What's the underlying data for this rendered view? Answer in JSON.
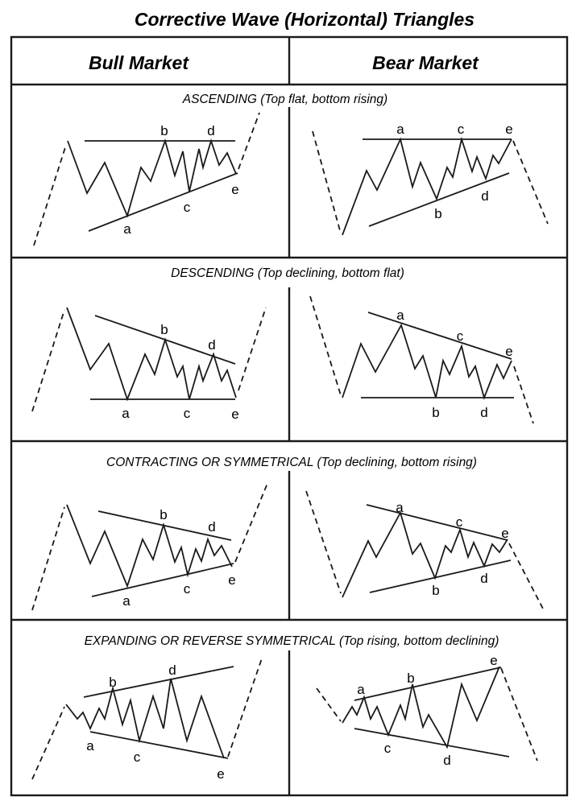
{
  "title": "Corrective Wave (Horizontal) Triangles",
  "columns": [
    "Bull Market",
    "Bear Market"
  ],
  "rows": [
    {
      "subtitle": "ASCENDING (Top flat, bottom rising)",
      "bull": {
        "labels": {
          "a": "a",
          "b": "b",
          "c": "c",
          "d": "d",
          "e": "e"
        },
        "wave": [
          [
            84,
            175
          ],
          [
            108,
            240
          ],
          [
            130,
            202
          ],
          [
            158,
            268
          ],
          [
            175,
            208
          ],
          [
            187,
            225
          ],
          [
            205,
            175
          ],
          [
            217,
            218
          ],
          [
            227,
            188
          ],
          [
            235,
            238
          ],
          [
            247,
            185
          ],
          [
            252,
            208
          ],
          [
            262,
            175
          ],
          [
            272,
            205
          ],
          [
            282,
            190
          ],
          [
            293,
            216
          ]
        ],
        "lines": [
          [
            [
              105,
              175
            ],
            [
              292,
              175
            ]
          ],
          [
            [
              110,
              287
            ],
            [
              295,
              215
            ]
          ]
        ],
        "dashes": [
          [
            [
              42,
              305
            ],
            [
              82,
              180
            ]
          ],
          [
            [
              296,
              210
            ],
            [
              322,
              140
            ]
          ]
        ],
        "label_pos": [
          [
            158,
            290
          ],
          [
            204,
            168
          ],
          [
            232,
            263
          ],
          [
            262,
            168
          ],
          [
            292,
            241
          ]
        ]
      },
      "bear": {
        "labels": {
          "a": "a",
          "b": "b",
          "c": "c",
          "d": "d",
          "e": "e"
        },
        "wave": [
          [
            425,
            292
          ],
          [
            455,
            212
          ],
          [
            468,
            236
          ],
          [
            497,
            173
          ],
          [
            512,
            232
          ],
          [
            522,
            202
          ],
          [
            542,
            247
          ],
          [
            555,
            208
          ],
          [
            562,
            220
          ],
          [
            573,
            173
          ],
          [
            586,
            213
          ],
          [
            592,
            195
          ],
          [
            603,
            222
          ],
          [
            612,
            193
          ],
          [
            619,
            203
          ],
          [
            635,
            173
          ]
        ],
        "lines": [
          [
            [
              450,
              173
            ],
            [
              635,
              173
            ]
          ],
          [
            [
              458,
              281
            ],
            [
              632,
              215
            ]
          ]
        ],
        "dashes": [
          [
            [
              388,
              163
            ],
            [
              423,
              290
            ]
          ],
          [
            [
              637,
              175
            ],
            [
              680,
              278
            ]
          ]
        ],
        "label_pos": [
          [
            497,
            166
          ],
          [
            544,
            271
          ],
          [
            572,
            166
          ],
          [
            602,
            249
          ],
          [
            632,
            166
          ]
        ]
      }
    },
    {
      "subtitle": "DESCENDING (Top declining, bottom flat)",
      "bull": {
        "labels": {
          "a": "a",
          "b": "b",
          "c": "c",
          "d": "d",
          "e": "e"
        },
        "wave": [
          [
            83,
            382
          ],
          [
            112,
            459
          ],
          [
            135,
            427
          ],
          [
            158,
            496
          ],
          [
            180,
            440
          ],
          [
            192,
            465
          ],
          [
            205,
            422
          ],
          [
            220,
            468
          ],
          [
            227,
            455
          ],
          [
            235,
            496
          ],
          [
            247,
            455
          ],
          [
            252,
            473
          ],
          [
            265,
            440
          ],
          [
            275,
            473
          ],
          [
            282,
            460
          ],
          [
            293,
            494
          ]
        ],
        "lines": [
          [
            [
              118,
              392
            ],
            [
              292,
              452
            ]
          ],
          [
            [
              112,
              496
            ],
            [
              292,
              496
            ]
          ]
        ],
        "dashes": [
          [
            [
              40,
              511
            ],
            [
              80,
              385
            ]
          ],
          [
            [
              296,
              485
            ],
            [
              330,
              382
            ]
          ]
        ],
        "label_pos": [
          [
            156,
            519
          ],
          [
            204,
            415
          ],
          [
            232,
            519
          ],
          [
            263,
            434
          ],
          [
            292,
            520
          ]
        ]
      },
      "bear": {
        "labels": {
          "a": "a",
          "b": "b",
          "c": "c",
          "d": "d",
          "e": "e"
        },
        "wave": [
          [
            425,
            494
          ],
          [
            448,
            427
          ],
          [
            466,
            462
          ],
          [
            498,
            404
          ],
          [
            515,
            458
          ],
          [
            525,
            442
          ],
          [
            541,
            494
          ],
          [
            550,
            448
          ],
          [
            558,
            465
          ],
          [
            573,
            430
          ],
          [
            582,
            468
          ],
          [
            590,
            455
          ],
          [
            601,
            494
          ],
          [
            617,
            453
          ],
          [
            625,
            470
          ],
          [
            635,
            448
          ]
        ],
        "lines": [
          [
            [
              457,
              388
            ],
            [
              635,
              446
            ]
          ],
          [
            [
              448,
              494
            ],
            [
              638,
              494
            ]
          ]
        ],
        "dashes": [
          [
            [
              385,
              368
            ],
            [
              423,
              491
            ]
          ],
          [
            [
              638,
              455
            ],
            [
              662,
              526
            ]
          ]
        ],
        "label_pos": [
          [
            497,
            397
          ],
          [
            541,
            518
          ],
          [
            571,
            423
          ],
          [
            601,
            518
          ],
          [
            632,
            442
          ]
        ]
      }
    },
    {
      "subtitle": "CONTRACTING OR SYMMETRICAL (Top declining, bottom rising)",
      "bull": {
        "labels": {
          "a": "a",
          "b": "b",
          "c": "c",
          "d": "d",
          "e": "e"
        },
        "wave": [
          [
            83,
            627
          ],
          [
            112,
            700
          ],
          [
            130,
            660
          ],
          [
            158,
            728
          ],
          [
            177,
            670
          ],
          [
            190,
            695
          ],
          [
            203,
            652
          ],
          [
            217,
            698
          ],
          [
            225,
            680
          ],
          [
            233,
            714
          ],
          [
            243,
            682
          ],
          [
            250,
            697
          ],
          [
            258,
            670
          ],
          [
            266,
            690
          ],
          [
            275,
            678
          ],
          [
            288,
            704
          ]
        ],
        "lines": [
          [
            [
              122,
              635
            ],
            [
              287,
              671
            ]
          ],
          [
            [
              114,
              741
            ],
            [
              290,
              700
            ]
          ]
        ],
        "dashes": [
          [
            [
              40,
              758
            ],
            [
              80,
              630
            ]
          ],
          [
            [
              292,
              698
            ],
            [
              333,
              598
            ]
          ]
        ],
        "label_pos": [
          [
            157,
            752
          ],
          [
            203,
            645
          ],
          [
            232,
            737
          ],
          [
            263,
            660
          ],
          [
            288,
            726
          ]
        ]
      },
      "bear": {
        "labels": {
          "a": "a",
          "b": "b",
          "c": "c",
          "d": "d",
          "e": "e"
        },
        "wave": [
          [
            425,
            742
          ],
          [
            457,
            672
          ],
          [
            467,
            692
          ],
          [
            497,
            637
          ],
          [
            512,
            688
          ],
          [
            522,
            675
          ],
          [
            540,
            718
          ],
          [
            553,
            678
          ],
          [
            560,
            686
          ],
          [
            571,
            658
          ],
          [
            581,
            692
          ],
          [
            588,
            674
          ],
          [
            601,
            703
          ],
          [
            611,
            676
          ],
          [
            620,
            686
          ],
          [
            630,
            670
          ]
        ],
        "lines": [
          [
            [
              455,
              627
            ],
            [
              630,
              671
            ]
          ],
          [
            [
              459,
              736
            ],
            [
              634,
              696
            ]
          ]
        ],
        "dashes": [
          [
            [
              380,
              610
            ],
            [
              423,
              737
            ]
          ],
          [
            [
              632,
              675
            ],
            [
              676,
              760
            ]
          ]
        ],
        "label_pos": [
          [
            496,
            636
          ],
          [
            541,
            739
          ],
          [
            570,
            654
          ],
          [
            601,
            724
          ],
          [
            627,
            668
          ]
        ]
      }
    },
    {
      "subtitle": "EXPANDING OR REVERSE SYMMETRICAL  (Top rising, bottom declining)",
      "bull": {
        "labels": {
          "a": "a",
          "b": "b",
          "c": "c",
          "d": "d",
          "e": "e"
        },
        "wave": [
          [
            82,
            875
          ],
          [
            96,
            893
          ],
          [
            103,
            885
          ],
          [
            112,
            905
          ],
          [
            123,
            880
          ],
          [
            130,
            893
          ],
          [
            140,
            855
          ],
          [
            152,
            900
          ],
          [
            162,
            870
          ],
          [
            173,
            920
          ],
          [
            190,
            865
          ],
          [
            203,
            905
          ],
          [
            212,
            843
          ],
          [
            232,
            920
          ],
          [
            250,
            865
          ],
          [
            278,
            942
          ]
        ],
        "lines": [
          [
            [
              104,
              866
            ],
            [
              290,
              828
            ]
          ],
          [
            [
              112,
              909
            ],
            [
              283,
              942
            ]
          ]
        ],
        "dashes": [
          [
            [
              40,
              968
            ],
            [
              80,
              878
            ]
          ],
          [
            [
              283,
              940
            ],
            [
              325,
              818
            ]
          ]
        ],
        "label_pos": [
          [
            112,
            932
          ],
          [
            140,
            853
          ],
          [
            170,
            946
          ],
          [
            214,
            838
          ],
          [
            274,
            967
          ]
        ]
      },
      "bear": {
        "labels": {
          "a": "a",
          "b": "b",
          "c": "c",
          "d": "d",
          "e": "e"
        },
        "wave": [
          [
            425,
            898
          ],
          [
            437,
            878
          ],
          [
            443,
            888
          ],
          [
            452,
            866
          ],
          [
            460,
            893
          ],
          [
            468,
            878
          ],
          [
            482,
            913
          ],
          [
            497,
            876
          ],
          [
            503,
            893
          ],
          [
            512,
            850
          ],
          [
            525,
            903
          ],
          [
            532,
            888
          ],
          [
            555,
            928
          ],
          [
            573,
            850
          ],
          [
            592,
            895
          ],
          [
            620,
            828
          ]
        ],
        "lines": [
          [
            [
              440,
              870
            ],
            [
              622,
              829
            ]
          ],
          [
            [
              440,
              905
            ],
            [
              632,
              940
            ]
          ]
        ],
        "dashes": [
          [
            [
              393,
              855
            ],
            [
              423,
              896
            ]
          ],
          [
            [
              622,
              830
            ],
            [
              667,
              945
            ]
          ]
        ],
        "label_pos": [
          [
            448,
            862
          ],
          [
            510,
            848
          ],
          [
            481,
            935
          ],
          [
            555,
            950
          ],
          [
            613,
            826
          ]
        ]
      }
    }
  ]
}
